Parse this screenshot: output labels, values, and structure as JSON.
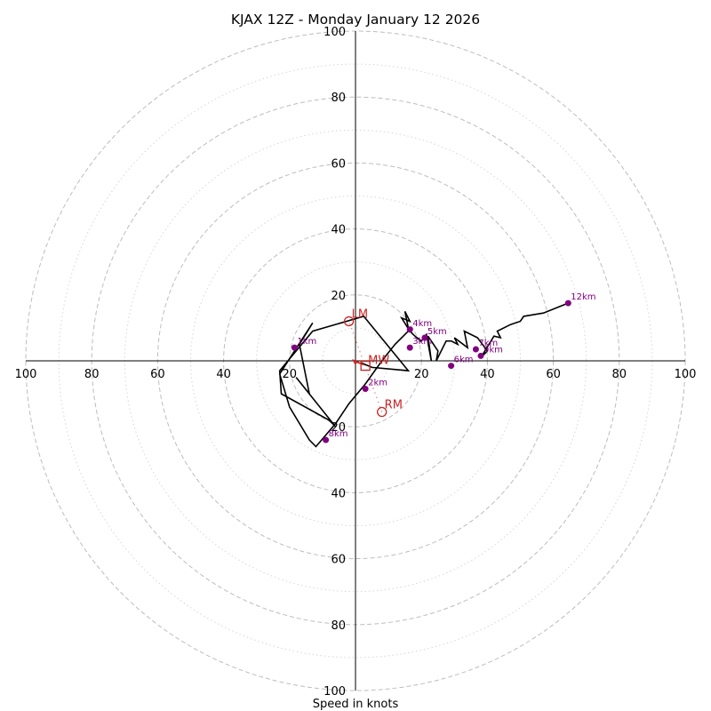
{
  "title": "KJAX 12Z - Monday January 12 2026",
  "chart_data": {
    "type": "line",
    "title": "KJAX 12Z - Monday January 12 2026",
    "xlabel": "Speed in knots",
    "ylabel": "",
    "range": [
      -100,
      100
    ],
    "ring_major": [
      20,
      40,
      60,
      80,
      100
    ],
    "ring_minor": [
      10,
      30,
      50,
      70,
      90
    ],
    "tick_labels": {
      "x_neg": [
        "100",
        "80",
        "60",
        "40",
        "20"
      ],
      "x_pos": [
        "20",
        "40",
        "60",
        "80",
        "100"
      ],
      "y_pos": [
        "20",
        "40",
        "60",
        "80",
        "100"
      ],
      "y_neg": [
        "20",
        "40",
        "60",
        "80",
        "100"
      ]
    },
    "colors": {
      "trace": "#000000",
      "height_marker": "#800080",
      "storm_motion": "#cc2222",
      "ring": "#bdbdbd"
    },
    "trace": {
      "name": "wind profile",
      "u": [
        1.5,
        5,
        16,
        2.5,
        -13,
        -23,
        -22.5,
        -8,
        -6,
        -18,
        -14,
        -17,
        -13,
        -23,
        -20,
        -14,
        -12,
        -6,
        -2,
        3,
        8,
        12,
        16,
        16,
        15,
        16.5,
        14,
        16.5,
        18,
        20,
        21.5,
        23,
        22,
        25,
        24.5,
        27.5,
        29,
        31,
        30,
        34,
        33,
        37,
        40,
        38,
        42,
        44,
        43,
        47,
        50,
        51,
        54,
        57,
        64.5
      ],
      "v": [
        -0.5,
        -2,
        -3,
        13.5,
        9,
        -3,
        -10,
        -18,
        -20,
        -5,
        -10,
        5,
        11.5,
        -4,
        -14,
        -24,
        -26,
        -19,
        -13,
        -7,
        0,
        5,
        9,
        10,
        15,
        12,
        13,
        9,
        7.5,
        6,
        8,
        0,
        7.5,
        3,
        0,
        6,
        6,
        5,
        7,
        4,
        9,
        7,
        3,
        1,
        7.5,
        7,
        9,
        11,
        12,
        13.5,
        14,
        14.5,
        17.5
      ]
    },
    "height_markers": [
      {
        "label": "1km",
        "u": -18.5,
        "v": 4
      },
      {
        "label": "2km",
        "u": 3,
        "v": -8.5
      },
      {
        "label": "3km",
        "u": 16.5,
        "v": 4
      },
      {
        "label": "4km",
        "u": 16.5,
        "v": 9.5
      },
      {
        "label": "5km",
        "u": 21,
        "v": 7
      },
      {
        "label": "6km",
        "u": 29,
        "v": -1.5
      },
      {
        "label": "7km",
        "u": 36.5,
        "v": 3.5
      },
      {
        "label": "8km",
        "u": -9,
        "v": -24
      },
      {
        "label": "9km",
        "u": 38,
        "v": 1.5
      },
      {
        "label": "12km",
        "u": 64.5,
        "v": 17.5
      }
    ],
    "storm_motions": [
      {
        "label": "LM",
        "u": -2,
        "v": 12,
        "marker": "circle"
      },
      {
        "label": "RM",
        "u": 8,
        "v": -15.5,
        "marker": "circle"
      },
      {
        "label": "MW",
        "u": 3,
        "v": -1.5,
        "marker": "square"
      }
    ]
  }
}
